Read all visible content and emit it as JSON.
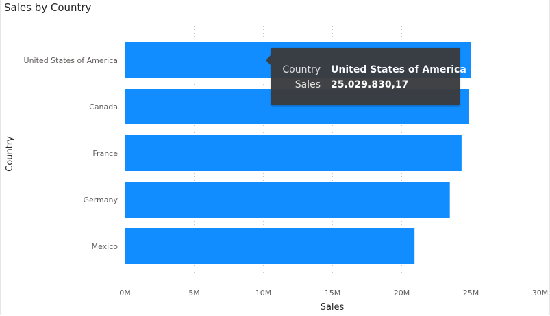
{
  "chart_data": {
    "type": "bar",
    "orientation": "horizontal",
    "title": "Sales by Country",
    "xlabel": "Sales",
    "ylabel": "Country",
    "categories": [
      "United States of America",
      "Canada",
      "France",
      "Germany",
      "Mexico"
    ],
    "values": [
      25029830.17,
      24900000,
      24350000,
      23500000,
      20950000
    ],
    "xlim": [
      0,
      30000000
    ],
    "xticks": [
      0,
      5000000,
      10000000,
      15000000,
      20000000,
      25000000,
      30000000
    ],
    "xtick_labels": [
      "0M",
      "5M",
      "10M",
      "15M",
      "20M",
      "25M",
      "30M"
    ],
    "grid": true,
    "bar_color": "#118dff",
    "tooltip": {
      "rows": [
        {
          "key": "Country",
          "value": "United States of America"
        },
        {
          "key": "Sales",
          "value": "25.029.830,17"
        }
      ]
    }
  }
}
